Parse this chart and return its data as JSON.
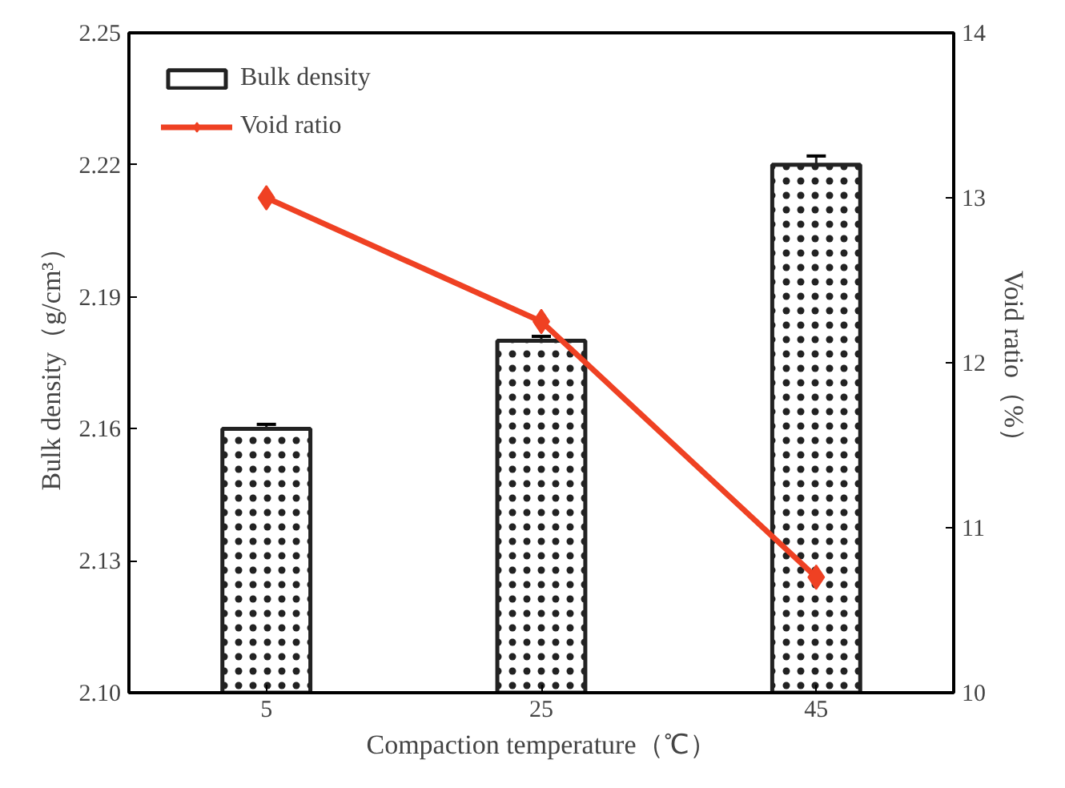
{
  "chart_data": {
    "type": "bar",
    "categories": [
      "5",
      "25",
      "45"
    ],
    "xlabel": "Compaction temperature（℃）",
    "ylabel": "Bulk density（g/cm³）",
    "y2label": "Void ratio（%）",
    "ylim": [
      2.1,
      2.25
    ],
    "yticks": [
      {
        "value": 2.1,
        "label": "2.10"
      },
      2.13,
      2.16,
      2.19,
      2.22,
      2.25
    ],
    "y2lim": [
      10,
      14
    ],
    "y2ticks": [
      10,
      11,
      12,
      13,
      14
    ],
    "series": [
      {
        "name": "Bulk density",
        "color": "#ffffff",
        "values": [
          2.16,
          2.18,
          2.22
        ],
        "errors": [
          0.001,
          0.001,
          0.002
        ]
      },
      {
        "name": "Void ratio",
        "type": "line",
        "axis": "y2",
        "color": "#ef4123",
        "marker": "diamond",
        "values": [
          13.0,
          12.25,
          10.7
        ]
      }
    ],
    "legend": "top left",
    "grid": false
  }
}
